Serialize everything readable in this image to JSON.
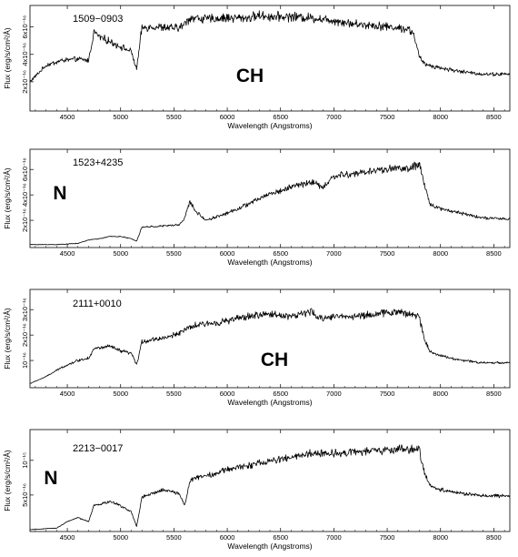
{
  "chart_data": [
    {
      "type": "line",
      "star_id": "1509−0903",
      "class_label": "CH",
      "xlabel": "Wavelength (Angstroms)",
      "ylabel": "Flux (erg/s/cm²/Å)",
      "xlim": [
        4150,
        8650
      ],
      "x_ticks": [
        "4500",
        "5000",
        "5500",
        "6000",
        "6500",
        "7000",
        "7500",
        "8000",
        "8500"
      ],
      "y_ticks": [
        "2x10⁻¹⁶",
        "4x10⁻¹⁶",
        "6x10⁻¹⁶"
      ],
      "ylim": [
        0,
        8
      ],
      "grid": false,
      "series": [
        {
          "x": [
            4150,
            4300,
            4450,
            4600,
            4700,
            4750,
            4800,
            4900,
            5000,
            5100,
            5150,
            5200,
            5300,
            5450,
            5550,
            5600,
            5650,
            5700,
            5800,
            6000,
            6200,
            6300,
            6400,
            6600,
            6800,
            7000,
            7200,
            7400,
            7600,
            7700,
            7750,
            7800,
            7850,
            8000,
            8200,
            8400,
            8600,
            8650
          ],
          "y": [
            2.2,
            3.5,
            3.9,
            4.0,
            3.9,
            6.2,
            5.8,
            5.4,
            5.0,
            4.6,
            3.2,
            6.5,
            6.6,
            6.5,
            6.5,
            6.8,
            7.3,
            7.3,
            7.2,
            7.3,
            7.3,
            7.5,
            7.4,
            7.4,
            7.3,
            7.1,
            6.8,
            6.7,
            6.5,
            6.4,
            6.0,
            4.2,
            3.6,
            3.3,
            3.0,
            2.8,
            2.8,
            2.8
          ]
        }
      ]
    },
    {
      "type": "line",
      "star_id": "1523+4235",
      "class_label": "N",
      "xlabel": "Wavelength (Angstroms)",
      "ylabel": "Flux (erg/s/cm²/Å)",
      "xlim": [
        4150,
        8650
      ],
      "x_ticks": [
        "4500",
        "5000",
        "5500",
        "6000",
        "6500",
        "7000",
        "7500",
        "8000",
        "8500"
      ],
      "y_ticks": [
        "2x10⁻¹⁶",
        "4x10⁻¹⁶",
        "6x10⁻¹⁶"
      ],
      "ylim": [
        0,
        8
      ],
      "grid": false,
      "series": [
        {
          "x": [
            4150,
            4400,
            4600,
            4700,
            4800,
            4900,
            5000,
            5100,
            5150,
            5200,
            5400,
            5550,
            5600,
            5650,
            5700,
            5800,
            6000,
            6200,
            6400,
            6500,
            6600,
            6800,
            6900,
            7000,
            7200,
            7400,
            7600,
            7700,
            7800,
            7850,
            7900,
            8000,
            8200,
            8400,
            8600,
            8650
          ],
          "y": [
            0.1,
            0.1,
            0.2,
            0.5,
            0.6,
            0.8,
            0.8,
            0.6,
            0.4,
            1.6,
            1.7,
            1.8,
            2.4,
            3.8,
            3.0,
            2.2,
            2.8,
            3.6,
            4.5,
            4.7,
            5.1,
            5.5,
            5.0,
            6.0,
            6.2,
            6.5,
            6.7,
            6.6,
            7.0,
            5.2,
            3.6,
            3.2,
            2.8,
            2.4,
            2.3,
            2.3
          ]
        }
      ]
    },
    {
      "type": "line",
      "star_id": "2111+0010",
      "class_label": "CH",
      "xlabel": "Wavelength (Angstroms)",
      "ylabel": "Flux (erg/s/cm²/Å)",
      "xlim": [
        4150,
        8650
      ],
      "x_ticks": [
        "4500",
        "5000",
        "5500",
        "6000",
        "6500",
        "7000",
        "7500",
        "8000",
        "8500"
      ],
      "y_ticks": [
        "10⁻¹⁶",
        "2x10⁻¹⁶",
        "3x10⁻¹⁶"
      ],
      "ylim": [
        0,
        4
      ],
      "grid": false,
      "series": [
        {
          "x": [
            4150,
            4300,
            4450,
            4600,
            4700,
            4750,
            4900,
            5000,
            5100,
            5150,
            5200,
            5300,
            5450,
            5550,
            5650,
            5700,
            5850,
            6000,
            6200,
            6400,
            6600,
            6800,
            6850,
            7000,
            7200,
            7400,
            7600,
            7700,
            7800,
            7850,
            7900,
            8000,
            8200,
            8400,
            8600,
            8650
          ],
          "y": [
            0.1,
            0.4,
            0.8,
            1.1,
            1.2,
            1.6,
            1.7,
            1.5,
            1.4,
            0.9,
            1.9,
            2.0,
            2.1,
            2.3,
            2.5,
            2.6,
            2.7,
            2.8,
            3.0,
            3.1,
            3.0,
            3.2,
            2.9,
            3.0,
            3.0,
            3.1,
            3.2,
            3.1,
            3.0,
            2.0,
            1.5,
            1.3,
            1.1,
            1.0,
            1.0,
            1.0
          ]
        }
      ]
    },
    {
      "type": "line",
      "star_id": "2213−0017",
      "class_label": "N",
      "xlabel": "Wavelength (Angstroms)",
      "ylabel": "Flux (erg/s/cm²/Å)",
      "xlim": [
        4150,
        8650
      ],
      "x_ticks": [
        "4500",
        "5000",
        "5500",
        "6000",
        "6500",
        "7000",
        "7500",
        "8000",
        "8500"
      ],
      "y_ticks": [
        "5x10⁻¹⁶",
        "10⁻¹⁵"
      ],
      "ylim": [
        0,
        1.2
      ],
      "grid": false,
      "series": [
        {
          "x": [
            4150,
            4400,
            4500,
            4600,
            4700,
            4750,
            4900,
            5000,
            5100,
            5150,
            5200,
            5400,
            5550,
            5600,
            5650,
            5700,
            5900,
            6000,
            6200,
            6400,
            6600,
            6800,
            7000,
            7200,
            7400,
            7600,
            7700,
            7800,
            7850,
            7900,
            8000,
            8200,
            8400,
            8600,
            8650
          ],
          "y": [
            0.0,
            0.02,
            0.1,
            0.15,
            0.1,
            0.3,
            0.35,
            0.3,
            0.22,
            0.04,
            0.4,
            0.5,
            0.45,
            0.3,
            0.6,
            0.65,
            0.7,
            0.75,
            0.8,
            0.85,
            0.9,
            0.95,
            0.95,
            0.97,
            0.98,
            1.0,
            1.0,
            1.0,
            0.7,
            0.55,
            0.5,
            0.45,
            0.42,
            0.42,
            0.42
          ]
        }
      ]
    }
  ]
}
